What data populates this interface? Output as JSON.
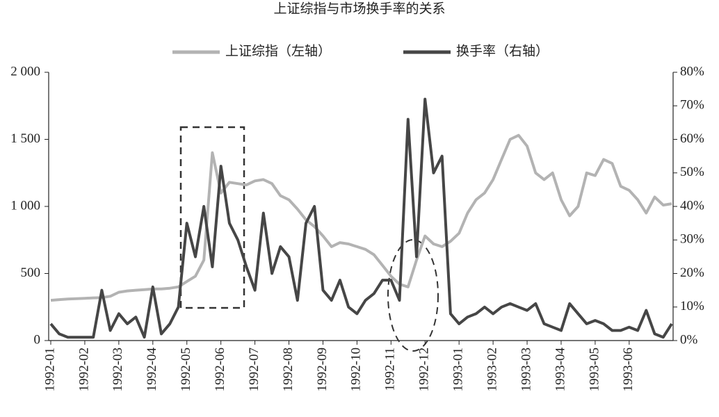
{
  "chart_data": {
    "type": "line",
    "title": "上证综指与市场换手率的关系",
    "categories": [
      "1992-01",
      null,
      null,
      null,
      "1992-02",
      null,
      null,
      null,
      "1992-03",
      null,
      null,
      null,
      "1992-04",
      null,
      null,
      null,
      "1992-05",
      null,
      null,
      null,
      "1992-06",
      null,
      null,
      null,
      "1992-07",
      null,
      null,
      null,
      "1992-08",
      null,
      null,
      null,
      "1992-09",
      null,
      null,
      null,
      "1992-10",
      null,
      null,
      null,
      "1992-11",
      null,
      null,
      null,
      "1992-12",
      null,
      null,
      null,
      "1993-01",
      null,
      null,
      null,
      "1993-02",
      null,
      null,
      null,
      "1993-03",
      null,
      null,
      null,
      "1993-04",
      null,
      null,
      null,
      "1993-05",
      null,
      null,
      null,
      "1993-06",
      null,
      null,
      null,
      null,
      null
    ],
    "series": [
      {
        "name": "上证综指（左轴）",
        "color": "#b3b3b3",
        "axis": "y",
        "values": [
          300,
          305,
          310,
          312,
          315,
          318,
          320,
          330,
          360,
          370,
          375,
          380,
          385,
          385,
          390,
          400,
          440,
          480,
          600,
          1400,
          1100,
          1180,
          1170,
          1160,
          1190,
          1200,
          1170,
          1080,
          1050,
          980,
          900,
          850,
          780,
          700,
          730,
          720,
          700,
          680,
          640,
          560,
          480,
          420,
          400,
          600,
          780,
          720,
          700,
          740,
          800,
          950,
          1050,
          1100,
          1200,
          1350,
          1500,
          1530,
          1450,
          1250,
          1200,
          1250,
          1050,
          930,
          1000,
          1250,
          1230,
          1350,
          1320,
          1150,
          1120,
          1050,
          950,
          1070,
          1010,
          1020
        ]
      },
      {
        "name": "换手率（右轴）",
        "color": "#464646",
        "axis": "y2",
        "values": [
          5,
          2,
          1,
          1,
          1,
          1,
          15,
          3,
          8,
          5,
          7,
          1,
          16,
          2,
          5,
          10,
          35,
          25,
          40,
          22,
          52,
          35,
          30,
          22,
          15,
          38,
          20,
          28,
          25,
          12,
          35,
          40,
          15,
          12,
          18,
          10,
          8,
          12,
          14,
          18,
          18,
          12,
          66,
          25,
          72,
          50,
          55,
          8,
          5,
          7,
          8,
          10,
          8,
          10,
          11,
          10,
          9,
          11,
          5,
          4,
          3,
          11,
          8,
          5,
          6,
          5,
          3,
          3,
          4,
          3,
          9,
          2,
          1,
          5
        ]
      }
    ],
    "ylim": [
      0,
      2000
    ],
    "yticks": [
      0,
      500,
      {
        "value": 1000,
        "label": "1 000"
      },
      {
        "value": 1500,
        "label": "1 500"
      },
      {
        "value": 2000,
        "label": "2 000"
      }
    ],
    "y2lim": [
      0,
      80
    ],
    "y2ticks": [
      {
        "value": 0,
        "label": "0%"
      },
      {
        "value": 10,
        "label": "10%"
      },
      {
        "value": 20,
        "label": "20%"
      },
      {
        "value": 30,
        "label": "30%"
      },
      {
        "value": 40,
        "label": "40%"
      },
      {
        "value": 50,
        "label": "50%"
      },
      {
        "value": 60,
        "label": "60%"
      },
      {
        "value": 70,
        "label": "70%"
      },
      {
        "value": 80,
        "label": "80%"
      }
    ]
  }
}
